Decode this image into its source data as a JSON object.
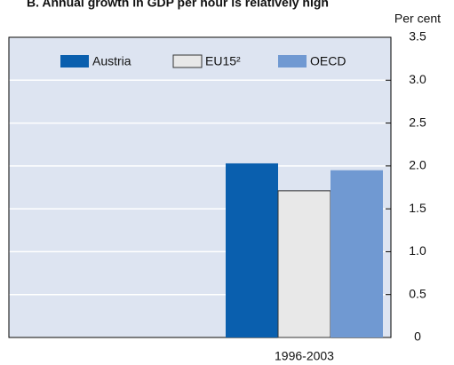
{
  "chart_data": {
    "type": "bar",
    "title": "B. Annual growth in GDP per hour is relatively high",
    "y_axis_label": "Per cent",
    "categories": [
      null,
      "1996-2003"
    ],
    "series": [
      {
        "name": "Austria",
        "color": "#0a5fae",
        "values": [
          null,
          2.03
        ]
      },
      {
        "name": "EU15²",
        "color": "#e8e8e8",
        "values": [
          null,
          1.71
        ]
      },
      {
        "name": "OECD",
        "color": "#7099d2",
        "values": [
          null,
          1.95
        ]
      }
    ],
    "ylim": [
      0,
      3.5
    ],
    "yticks": [
      0,
      0.5,
      {
        "value": 1,
        "label": "1.0"
      },
      1.5,
      {
        "value": 2,
        "label": "2.0"
      },
      2.5,
      {
        "value": 3,
        "label": "3.0"
      },
      3.5
    ],
    "grid": true,
    "legend": "top"
  }
}
